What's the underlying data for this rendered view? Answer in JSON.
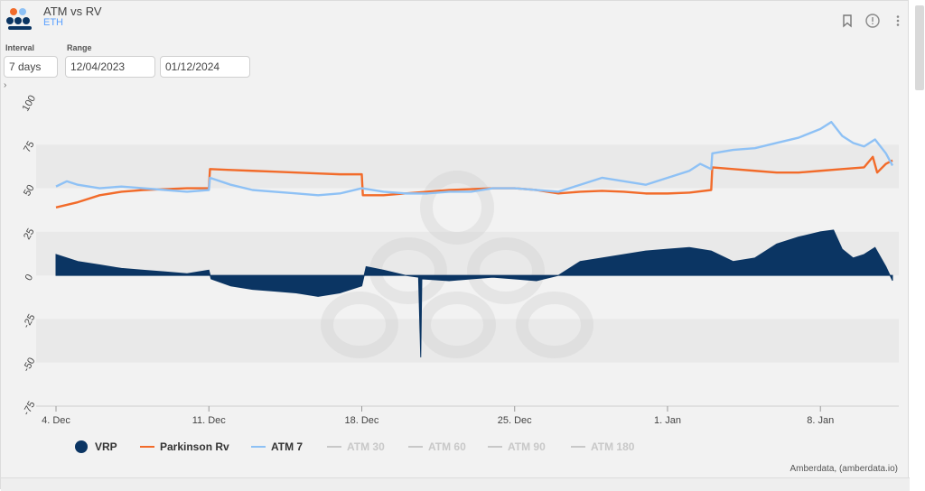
{
  "header": {
    "title": "ATM vs RV",
    "subtitle": "ETH",
    "icons": [
      "bookmark-icon",
      "info-icon",
      "more-vertical-icon"
    ]
  },
  "filters": {
    "interval_label": "Interval",
    "interval_value": "7 days",
    "range_label": "Range",
    "range_start": "12/04/2023",
    "range_end": "01/12/2024"
  },
  "credit": "Amberdata, (amberdata.io)",
  "colors": {
    "vrp": "#0b3563",
    "parkinson": "#f26b2a",
    "atm7": "#8ec1f5",
    "inactive": "#c8c8c8"
  },
  "chart_data": {
    "type": "line",
    "x_unit": "days from 4 Dec 2023",
    "xlim": [
      0,
      38.3
    ],
    "ylim": [
      -75,
      100
    ],
    "y_ticks": [
      "100",
      "75",
      "50",
      "25",
      "0",
      "-25",
      "-50",
      "-75"
    ],
    "x_tick_labels": [
      {
        "x": 0,
        "label": "4. Dec"
      },
      {
        "x": 7,
        "label": "11. Dec"
      },
      {
        "x": 14,
        "label": "18. Dec"
      },
      {
        "x": 21,
        "label": "25. Dec"
      },
      {
        "x": 28,
        "label": "1. Jan"
      },
      {
        "x": 35,
        "label": "8. Jan"
      }
    ],
    "series": [
      {
        "name": "VRP",
        "kind": "area",
        "points": [
          [
            0,
            12
          ],
          [
            1,
            8
          ],
          [
            2,
            6
          ],
          [
            3,
            4
          ],
          [
            4,
            3
          ],
          [
            5,
            2
          ],
          [
            6,
            1
          ],
          [
            7,
            3
          ],
          [
            7.1,
            -2
          ],
          [
            8,
            -6
          ],
          [
            9,
            -8
          ],
          [
            10,
            -9
          ],
          [
            11,
            -10
          ],
          [
            12,
            -12
          ],
          [
            13,
            -10
          ],
          [
            14,
            -6
          ],
          [
            14.2,
            5
          ],
          [
            15,
            3
          ],
          [
            16,
            0
          ],
          [
            16.6,
            -1
          ],
          [
            16.7,
            -47
          ],
          [
            16.75,
            -2
          ],
          [
            18,
            -3
          ],
          [
            19,
            -2
          ],
          [
            20,
            -1
          ],
          [
            21,
            -2
          ],
          [
            22,
            -3
          ],
          [
            23,
            0
          ],
          [
            24,
            8
          ],
          [
            25,
            10
          ],
          [
            26,
            12
          ],
          [
            27,
            14
          ],
          [
            28,
            15
          ],
          [
            29,
            16
          ],
          [
            30,
            14
          ],
          [
            31,
            8
          ],
          [
            32,
            10
          ],
          [
            33,
            18
          ],
          [
            34,
            22
          ],
          [
            35,
            25
          ],
          [
            35.6,
            26
          ],
          [
            36,
            15
          ],
          [
            36.5,
            10
          ],
          [
            37,
            12
          ],
          [
            37.5,
            16
          ],
          [
            38,
            5
          ],
          [
            38.3,
            -3
          ]
        ]
      },
      {
        "name": "Parkinson Rv",
        "kind": "line",
        "points": [
          [
            0,
            39
          ],
          [
            1,
            42
          ],
          [
            2,
            46
          ],
          [
            3,
            48
          ],
          [
            4,
            49
          ],
          [
            5,
            49.5
          ],
          [
            6,
            50
          ],
          [
            7,
            50
          ],
          [
            7.05,
            61
          ],
          [
            8,
            60.5
          ],
          [
            9,
            60
          ],
          [
            10,
            59.5
          ],
          [
            11,
            59
          ],
          [
            12,
            58.5
          ],
          [
            13,
            58
          ],
          [
            14,
            58
          ],
          [
            14.05,
            46
          ],
          [
            15,
            46
          ],
          [
            16,
            47
          ],
          [
            17,
            48
          ],
          [
            18,
            49
          ],
          [
            19,
            49.5
          ],
          [
            20,
            50
          ],
          [
            21,
            50
          ],
          [
            22,
            49
          ],
          [
            23,
            47
          ],
          [
            24,
            48
          ],
          [
            25,
            48.5
          ],
          [
            26,
            48
          ],
          [
            27,
            47
          ],
          [
            28,
            47
          ],
          [
            29,
            47.5
          ],
          [
            30,
            49
          ],
          [
            30.05,
            62
          ],
          [
            31,
            61
          ],
          [
            32,
            60
          ],
          [
            33,
            59
          ],
          [
            34,
            59
          ],
          [
            35,
            60
          ],
          [
            36,
            61
          ],
          [
            37,
            62
          ],
          [
            37.4,
            68
          ],
          [
            37.6,
            59
          ],
          [
            38,
            64
          ],
          [
            38.3,
            66
          ]
        ]
      },
      {
        "name": "ATM 7",
        "kind": "line",
        "points": [
          [
            0,
            51
          ],
          [
            0.5,
            54
          ],
          [
            1,
            52
          ],
          [
            2,
            50
          ],
          [
            3,
            51
          ],
          [
            4,
            50
          ],
          [
            5,
            49
          ],
          [
            6,
            48
          ],
          [
            7,
            49
          ],
          [
            7.05,
            56
          ],
          [
            8,
            52
          ],
          [
            9,
            49
          ],
          [
            10,
            48
          ],
          [
            11,
            47
          ],
          [
            12,
            46
          ],
          [
            13,
            47
          ],
          [
            14,
            50
          ],
          [
            15,
            48
          ],
          [
            16,
            47
          ],
          [
            17,
            47
          ],
          [
            18,
            48
          ],
          [
            19,
            48
          ],
          [
            20,
            50
          ],
          [
            21,
            50
          ],
          [
            22,
            49
          ],
          [
            23,
            48
          ],
          [
            24,
            52
          ],
          [
            25,
            56
          ],
          [
            26,
            54
          ],
          [
            27,
            52
          ],
          [
            28,
            56
          ],
          [
            29,
            60
          ],
          [
            29.5,
            64
          ],
          [
            30,
            61
          ],
          [
            30.05,
            70
          ],
          [
            31,
            72
          ],
          [
            32,
            73
          ],
          [
            33,
            76
          ],
          [
            34,
            79
          ],
          [
            35,
            84
          ],
          [
            35.5,
            88
          ],
          [
            36,
            80
          ],
          [
            36.5,
            76
          ],
          [
            37,
            74
          ],
          [
            37.5,
            78
          ],
          [
            38,
            70
          ],
          [
            38.3,
            63
          ]
        ]
      },
      {
        "name": "ATM 30",
        "kind": "hidden",
        "points": []
      },
      {
        "name": "ATM 60",
        "kind": "hidden",
        "points": []
      },
      {
        "name": "ATM 90",
        "kind": "hidden",
        "points": []
      },
      {
        "name": "ATM 180",
        "kind": "hidden",
        "points": []
      }
    ],
    "grid": true,
    "legend_placement": "bottom"
  }
}
